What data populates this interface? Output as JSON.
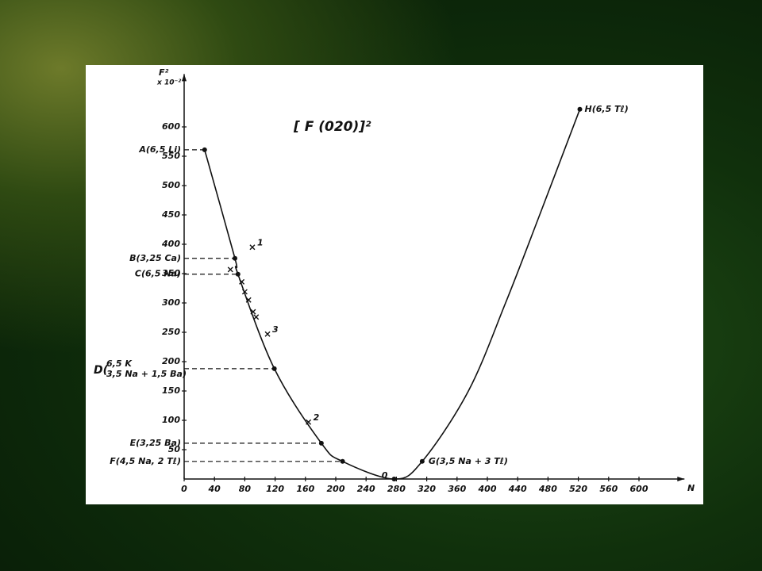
{
  "chart_data": {
    "type": "line",
    "title": "[ F (020)]²",
    "ylabel": "F²",
    "ylabel_unit": "x 10⁻²",
    "xlabel": "N",
    "xlim": [
      0,
      660
    ],
    "ylim": [
      0,
      690
    ],
    "xticks": [
      0,
      40,
      80,
      120,
      160,
      200,
      240,
      280,
      320,
      360,
      400,
      440,
      480,
      520,
      560,
      600
    ],
    "yticks": [
      50,
      100,
      150,
      200,
      250,
      300,
      350,
      400,
      450,
      500,
      550,
      600
    ],
    "color": "#111111",
    "curve": {
      "x": [
        27,
        67,
        71,
        119,
        181,
        209,
        277,
        314,
        375,
        424,
        469,
        522
      ],
      "values": [
        561,
        376,
        349,
        188,
        61,
        30,
        0,
        30,
        150,
        300,
        450,
        630
      ]
    },
    "points": [
      {
        "label": "A(6,5 Li)",
        "x": 27,
        "y": 561
      },
      {
        "label": "B(3,25 Ca)",
        "x": 67,
        "y": 376
      },
      {
        "label": "C(6,5 Na)",
        "x": 71,
        "y": 349
      },
      {
        "label": "D(",
        "sublabels": [
          "6,5 K",
          "3,5 Na + 1,5 Ba)"
        ],
        "x": 119,
        "y": 188
      },
      {
        "label": "E(3,25 Ba)",
        "x": 181,
        "y": 61
      },
      {
        "label": "F(4,5 Na, 2 Tℓ)",
        "x": 209,
        "y": 30
      },
      {
        "label": "0",
        "x": 277,
        "y": 0
      },
      {
        "label": "G(3,5 Na + 3 Tℓ)",
        "x": 314,
        "y": 30
      },
      {
        "label": "H(6,5 Tℓ)",
        "x": 522,
        "y": 630
      }
    ],
    "labeled_crosses": [
      {
        "label": "1",
        "x": 90,
        "y": 395
      },
      {
        "label": "3",
        "x": 110,
        "y": 247
      },
      {
        "label": "2",
        "x": 164,
        "y": 97
      }
    ],
    "crosses": {
      "x": [
        61,
        76,
        80,
        85,
        91,
        95
      ],
      "values": [
        357,
        336,
        319,
        305,
        285,
        276
      ]
    }
  }
}
